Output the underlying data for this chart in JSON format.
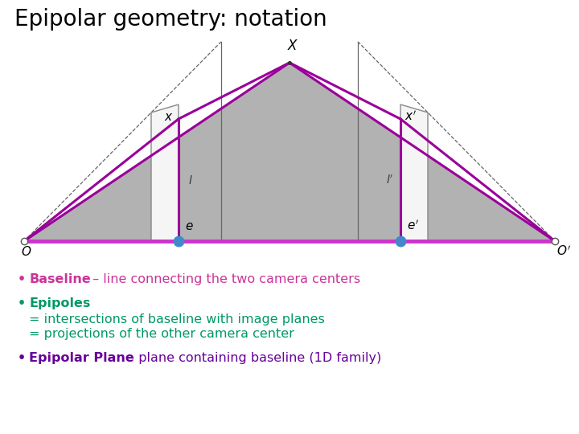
{
  "title": "Epipolar geometry: notation",
  "title_fontsize": 20,
  "title_color": "#000000",
  "background_color": "#ffffff",
  "bullet1_bold": "Baseline",
  "bullet1_rest": " – line connecting the two camera centers",
  "bullet1_color": "#cc3399",
  "bullet2_bold": "Epipoles",
  "bullet2_line2": "= intersections of baseline with image planes",
  "bullet2_line3": "= projections of the other camera center",
  "bullet2_color": "#009966",
  "bullet3_bold": "Epipolar Plane",
  "bullet3_rest": " – plane containing baseline (1D family)",
  "bullet3_color": "#660099",
  "gray_fill": "#999999",
  "baseline_color": "#cc33cc",
  "image_plane_color": "#f5f5f5",
  "image_plane_edge_color": "#888888",
  "purple_edge_color": "#990099",
  "epipole_color": "#4488cc",
  "label_color": "#000000",
  "frustum_color": "#666666"
}
